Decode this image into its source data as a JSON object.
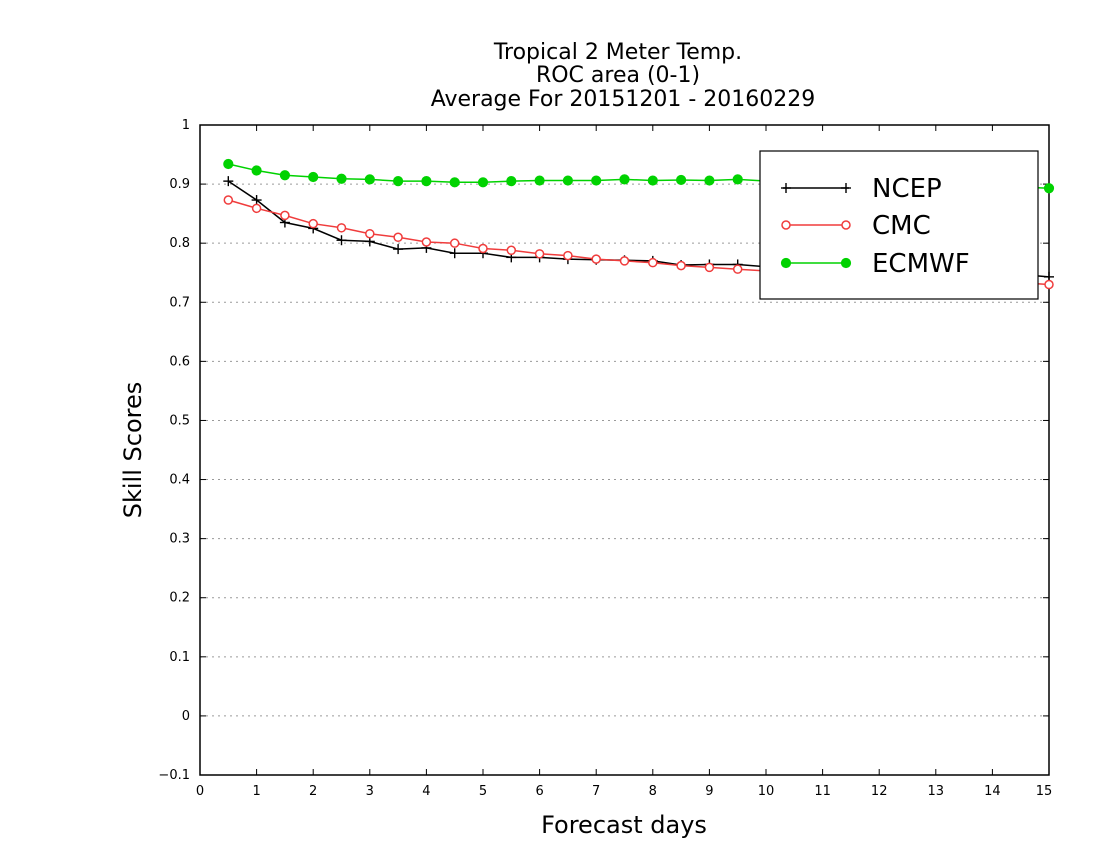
{
  "chart_data": {
    "type": "line",
    "title_lines": [
      "Tropical 2 Meter Temp.",
      "ROC area (0-1)",
      "Average For 20151201 - 20160229"
    ],
    "xlabel": "Forecast days",
    "ylabel": "Skill Scores",
    "xlim": [
      0,
      15
    ],
    "ylim": [
      -0.1,
      1
    ],
    "x_ticks": [
      0,
      1,
      2,
      3,
      4,
      5,
      6,
      7,
      8,
      9,
      10,
      11,
      12,
      13,
      14,
      15
    ],
    "y_ticks": [
      -0.1,
      0,
      0.1,
      0.2,
      0.3,
      0.4,
      0.5,
      0.6,
      0.7,
      0.8,
      0.9,
      1
    ],
    "y_tick_labels": [
      "−0.1",
      "0",
      "0.1",
      "0.2",
      "0.3",
      "0.4",
      "0.5",
      "0.6",
      "0.7",
      "0.8",
      "0.9",
      "1"
    ],
    "grid": "horizontal-dotted",
    "legend_position": "top-right",
    "x": [
      0.5,
      1,
      1.5,
      2,
      2.5,
      3,
      3.5,
      4,
      4.5,
      5,
      5.5,
      6,
      6.5,
      7,
      7.5,
      8,
      8.5,
      9,
      9.5,
      10,
      10.5,
      11,
      11.5,
      12,
      12.5,
      13,
      13.5,
      14,
      14.5,
      15
    ],
    "series": [
      {
        "name": "NCEP",
        "color": "#000000",
        "marker": "plus",
        "values": [
          0.905,
          0.873,
          0.835,
          0.825,
          0.805,
          0.803,
          0.79,
          0.792,
          0.783,
          0.783,
          0.776,
          0.776,
          0.773,
          0.772,
          0.771,
          0.77,
          0.763,
          0.764,
          0.764,
          0.76,
          0.758,
          0.758,
          0.756,
          0.755,
          0.753,
          0.752,
          0.75,
          0.749,
          0.747,
          0.743
        ]
      },
      {
        "name": "CMC",
        "color": "#f03c3c",
        "marker": "open-circle",
        "values": [
          0.873,
          0.859,
          0.847,
          0.833,
          0.826,
          0.816,
          0.81,
          0.802,
          0.8,
          0.791,
          0.788,
          0.782,
          0.779,
          0.773,
          0.77,
          0.767,
          0.762,
          0.759,
          0.756,
          0.753,
          0.75,
          0.748,
          0.745,
          0.743,
          0.741,
          0.739,
          0.736,
          0.735,
          0.733,
          0.73
        ]
      },
      {
        "name": "ECMWF",
        "color": "#00d200",
        "marker": "filled-circle",
        "values": [
          0.934,
          0.923,
          0.915,
          0.912,
          0.909,
          0.908,
          0.905,
          0.905,
          0.903,
          0.903,
          0.905,
          0.906,
          0.906,
          0.906,
          0.908,
          0.906,
          0.907,
          0.906,
          0.908,
          0.905,
          0.904,
          0.903,
          0.902,
          0.901,
          0.9,
          0.899,
          0.898,
          0.897,
          0.895,
          0.893
        ]
      }
    ]
  }
}
